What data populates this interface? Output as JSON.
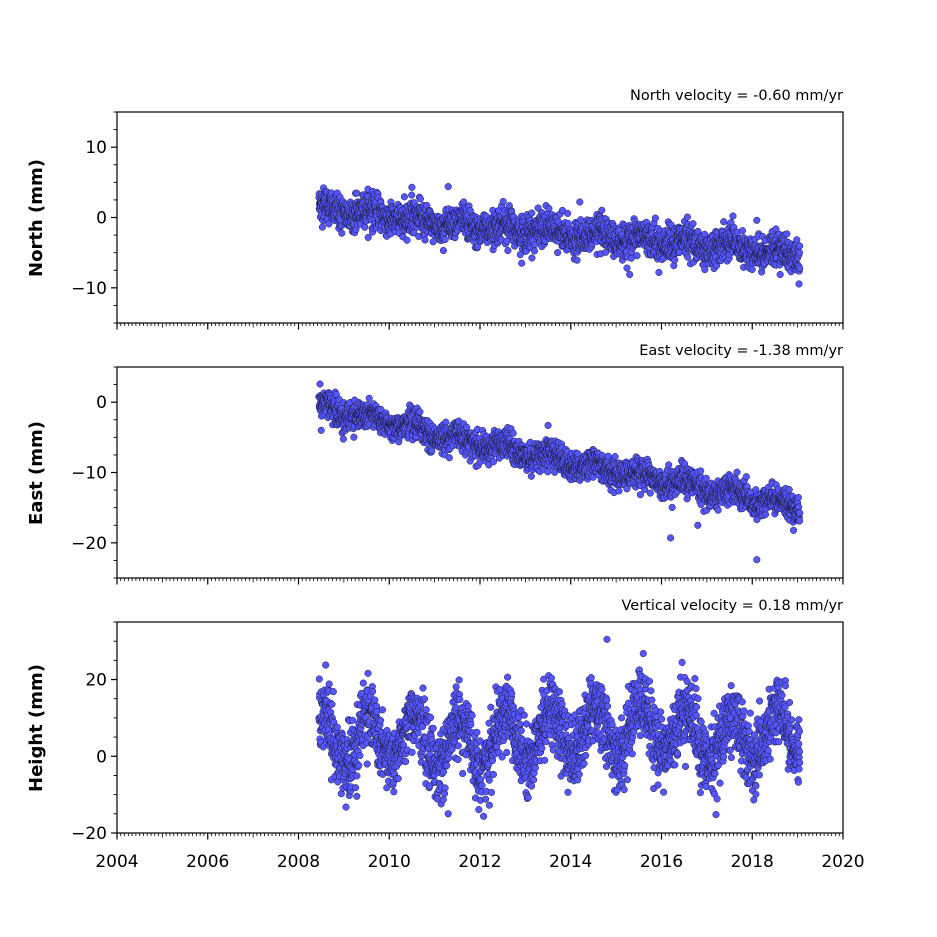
{
  "chart_data": [
    {
      "type": "scatter",
      "annotation": "North velocity = -0.60 mm/yr",
      "ylabel": "North (mm)",
      "xlim": [
        2004,
        2020
      ],
      "ylim": [
        -15,
        15
      ],
      "yticks": [
        -10,
        0,
        10
      ],
      "yticklabels": [
        "−10",
        "0",
        "10"
      ],
      "series": [
        {
          "time_range": [
            2008.45,
            2019.05
          ],
          "rate": -0.6,
          "x": [
            2008.5,
            2009.0,
            2010.0,
            2011.0,
            2012.0,
            2013.0,
            2014.0,
            2015.0,
            2016.0,
            2017.0,
            2018.0,
            2019.0
          ],
          "y": [
            1.2,
            1.0,
            0.3,
            -0.8,
            -1.3,
            -1.6,
            -2.6,
            -2.9,
            -3.3,
            -4.0,
            -4.6,
            -5.2
          ],
          "scatter_sd": 1.2,
          "seasonal_amplitude": 0.6,
          "outliers": [
            [
              2015.3,
              -8.1
            ],
            [
              2010.5,
              4.3
            ],
            [
              2011.3,
              4.4
            ],
            [
              2014.2,
              2.2
            ],
            [
              2018.1,
              -0.4
            ]
          ]
        }
      ]
    },
    {
      "type": "scatter",
      "annotation": "East velocity = -1.38 mm/yr",
      "ylabel": "East (mm)",
      "xlim": [
        2004,
        2020
      ],
      "ylim": [
        -25,
        5
      ],
      "yticks": [
        -20,
        -10,
        0
      ],
      "yticklabels": [
        "−20",
        "−10",
        "0"
      ],
      "series": [
        {
          "time_range": [
            2008.45,
            2019.05
          ],
          "rate": -1.38,
          "x": [
            2008.5,
            2009.0,
            2010.0,
            2011.0,
            2012.0,
            2013.0,
            2014.0,
            2015.0,
            2016.0,
            2017.0,
            2018.0,
            2019.0
          ],
          "y": [
            -0.5,
            -1.5,
            -2.8,
            -4.5,
            -6.0,
            -7.2,
            -8.5,
            -10.0,
            -11.0,
            -12.3,
            -13.8,
            -14.8
          ],
          "scatter_sd": 1.0,
          "seasonal_amplitude": 0.7,
          "outliers": [
            [
              2016.2,
              -19.3
            ],
            [
              2018.1,
              -22.4
            ],
            [
              2016.8,
              -17.5
            ],
            [
              2008.5,
              -4.0
            ],
            [
              2013.5,
              -3.3
            ]
          ]
        }
      ]
    },
    {
      "type": "scatter",
      "annotation": "Vertical velocity = 0.18 mm/yr",
      "ylabel": "Height (mm)",
      "xlabel": "",
      "xlim": [
        2004,
        2020
      ],
      "ylim": [
        -20,
        35
      ],
      "yticks": [
        -20,
        0,
        20
      ],
      "yticklabels": [
        "−20",
        "0",
        "20"
      ],
      "xticks": [
        2004,
        2006,
        2008,
        2010,
        2012,
        2014,
        2016,
        2018,
        2020
      ],
      "xticklabels": [
        "2004",
        "2006",
        "2008",
        "2010",
        "2012",
        "2014",
        "2016",
        "2018",
        "2020"
      ],
      "series": [
        {
          "time_range": [
            2008.45,
            2019.05
          ],
          "rate": 0.18,
          "x": [
            2008.5,
            2009.0,
            2010.0,
            2011.0,
            2012.0,
            2013.0,
            2014.0,
            2015.0,
            2016.0,
            2017.0,
            2018.0,
            2019.0
          ],
          "y": [
            5.0,
            4.0,
            5.0,
            3.5,
            3.0,
            5.0,
            7.0,
            6.0,
            8.0,
            4.5,
            4.0,
            7.0
          ],
          "scatter_sd": 4.5,
          "seasonal_amplitude": 6.5,
          "outliers": [
            [
              2014.8,
              30.5
            ],
            [
              2015.6,
              26.8
            ],
            [
              2008.6,
              23.8
            ],
            [
              2017.2,
              -15.2
            ],
            [
              2011.3,
              -15.0
            ]
          ]
        }
      ]
    }
  ],
  "style": {
    "marker_fill": "#5656ff",
    "marker_edge": "#1a1a3a",
    "axis_color": "#000000"
  }
}
